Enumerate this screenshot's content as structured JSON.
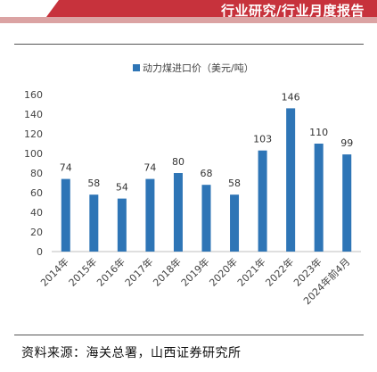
{
  "header": {
    "title": "行业研究/行业月度报告"
  },
  "source_note": "资料来源：海关总署，山西证券研究所",
  "colors": {
    "bar": "#2e75b6",
    "banner": "#c7323c",
    "banner_stripe": "#dba3a3"
  },
  "chart_data": {
    "type": "bar",
    "title": "",
    "xlabel": "",
    "ylabel": "",
    "ylim": [
      0,
      160
    ],
    "yticks": [
      0,
      20,
      40,
      60,
      80,
      100,
      120,
      140,
      160
    ],
    "grid": false,
    "legend_position": "top-center",
    "categories": [
      "2014年",
      "2015年",
      "2016年",
      "2017年",
      "2018年",
      "2019年",
      "2020年",
      "2021年",
      "2022年",
      "2023年",
      "2024年前4月"
    ],
    "series": [
      {
        "name": "动力煤进口价（美元/吨）",
        "values": [
          74,
          58,
          54,
          74,
          80,
          68,
          58,
          103,
          146,
          110,
          99
        ]
      }
    ]
  }
}
